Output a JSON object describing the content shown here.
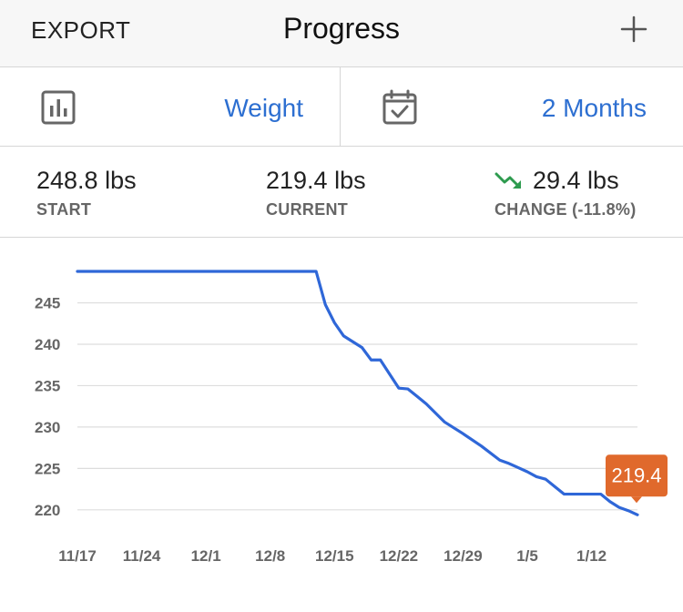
{
  "header": {
    "export_label": "EXPORT",
    "title": "Progress",
    "add_icon": "plus-icon"
  },
  "selectors": {
    "metric": {
      "icon": "bar-chart-icon",
      "label": "Weight"
    },
    "range": {
      "icon": "calendar-check-icon",
      "label": "2 Months"
    }
  },
  "stats": {
    "start": {
      "value": "248.8 lbs",
      "label": "START"
    },
    "current": {
      "value": "219.4 lbs",
      "label": "CURRENT"
    },
    "change": {
      "value": "29.4 lbs",
      "label": "CHANGE (-11.8%)",
      "icon": "trend-down-icon",
      "icon_color": "#2e9b4f"
    }
  },
  "colors": {
    "accent": "#2d6fd1",
    "line": "#2f67d8",
    "badge": "#e0692c",
    "grid": "#dddddd"
  },
  "chart_data": {
    "type": "line",
    "x_tick_labels": [
      "11/17",
      "11/24",
      "12/1",
      "12/8",
      "12/15",
      "12/22",
      "12/29",
      "1/5",
      "1/12"
    ],
    "y_tick_labels": [
      "220",
      "225",
      "230",
      "235",
      "240",
      "245"
    ],
    "ylim": [
      218,
      251
    ],
    "xlim": [
      0,
      61
    ],
    "grid": true,
    "x_unit": "days since 11/17",
    "series": [
      {
        "values_x": [
          0,
          26,
          27,
          28,
          29,
          31,
          32,
          33,
          34,
          35,
          36,
          37,
          38,
          39,
          40,
          41,
          42,
          44,
          46,
          47,
          48,
          49,
          50,
          51,
          52,
          53,
          55,
          56,
          57,
          58,
          59,
          60,
          61
        ],
        "values_y": [
          248.8,
          248.8,
          244.8,
          242.6,
          241.0,
          239.6,
          238.1,
          238.1,
          236.4,
          234.7,
          234.6,
          233.7,
          232.8,
          231.7,
          230.6,
          229.9,
          229.2,
          227.7,
          226.0,
          225.6,
          225.1,
          224.6,
          224.0,
          223.7,
          222.8,
          221.9,
          221.9,
          221.9,
          221.9,
          221.0,
          220.3,
          219.9,
          219.4
        ]
      }
    ],
    "badge_label": "219.4"
  }
}
